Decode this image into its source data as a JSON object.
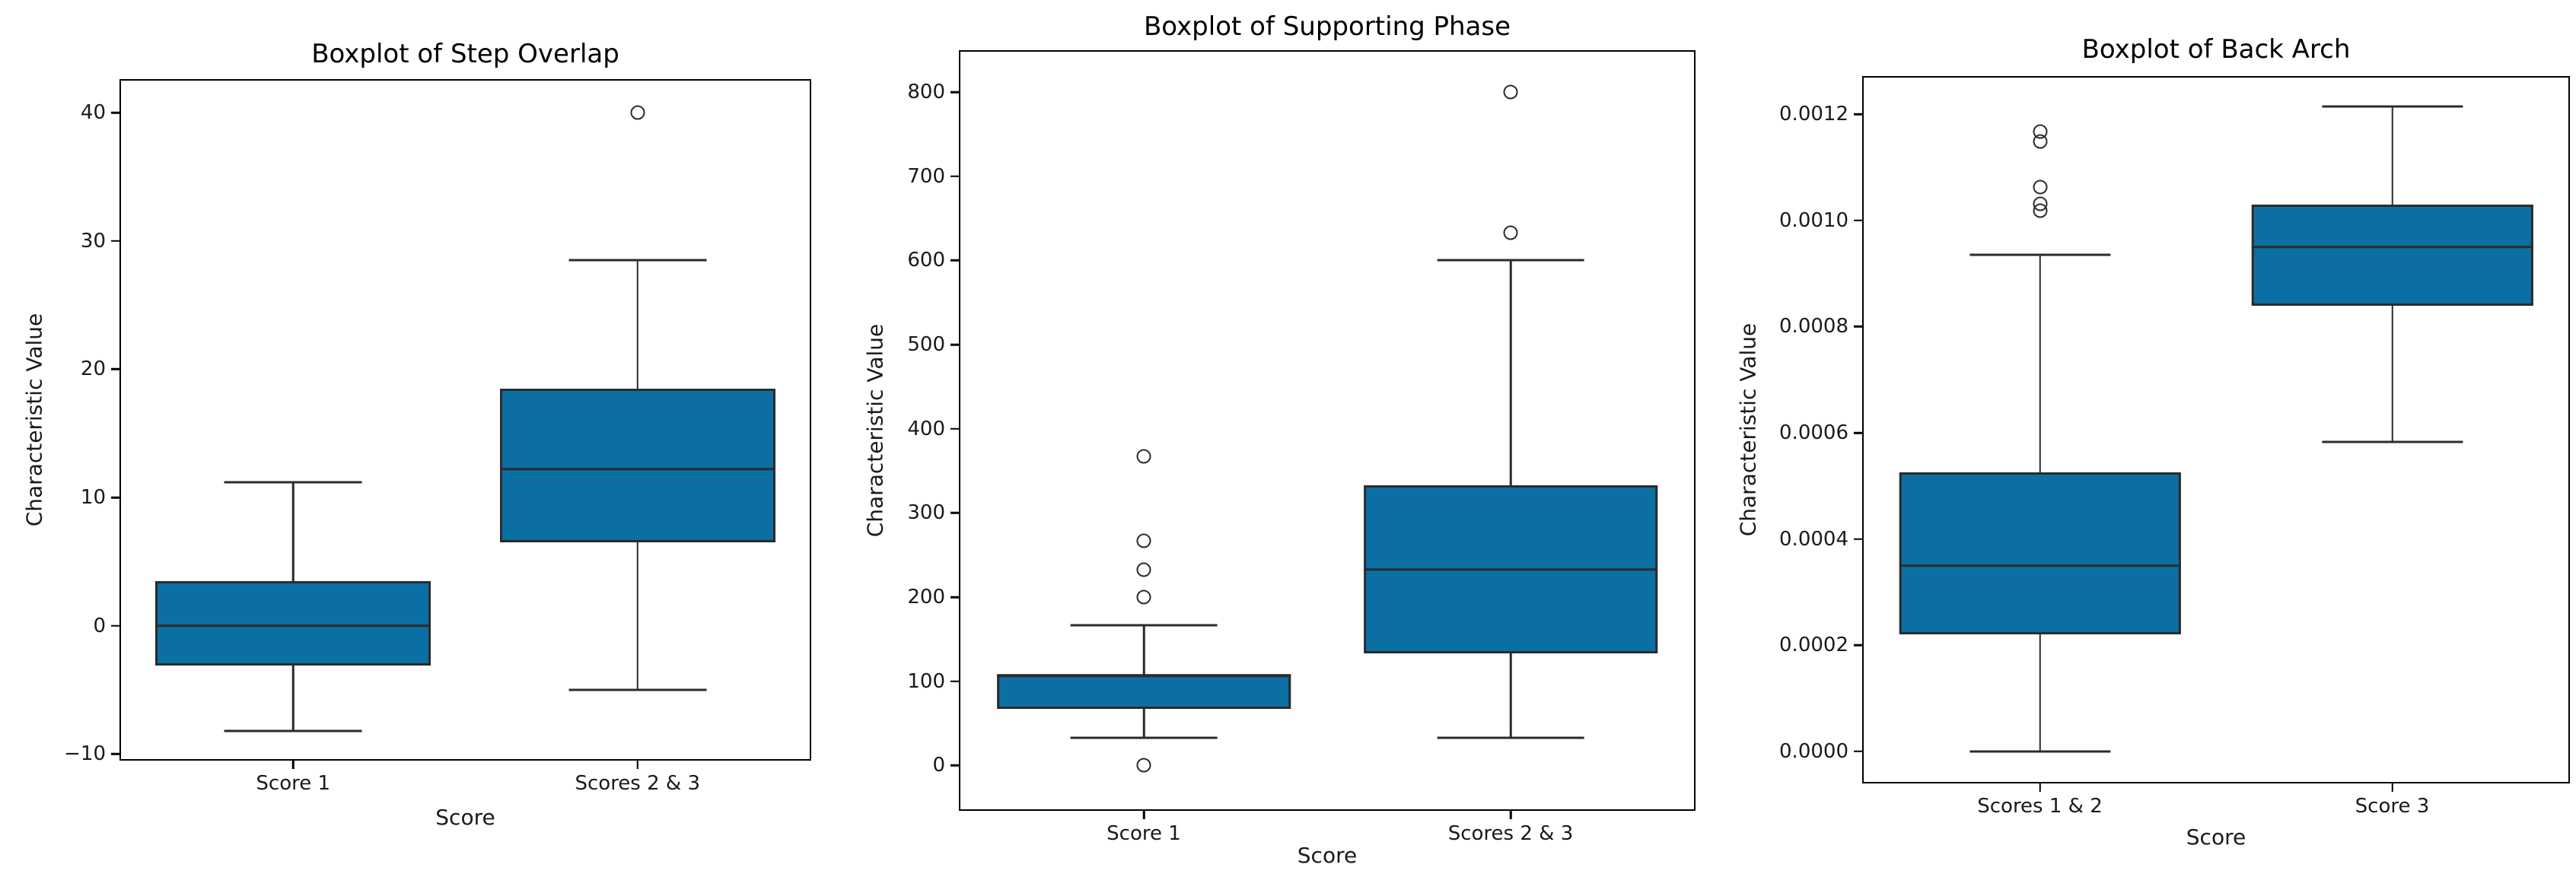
{
  "style": {
    "box_fill": "#0b6fa4",
    "line_color": "#2b2b2b",
    "frame_color": "#000000",
    "text_color": "#1a1a1a",
    "background": "#ffffff"
  },
  "chart_data": [
    {
      "type": "box",
      "title": "Boxplot of Step Overlap",
      "xlabel": "Score",
      "ylabel": "Characteristic Value",
      "ylim": [
        -10.4,
        42.5
      ],
      "yticks": [
        -10,
        0,
        10,
        20,
        30,
        40
      ],
      "ytick_labels": [
        "−10",
        "0",
        "10",
        "20",
        "30",
        "40"
      ],
      "categories": [
        "Score 1",
        "Scores 2 & 3"
      ],
      "grid": false,
      "boxes": [
        {
          "category": "Score 1",
          "whislo": -8.2,
          "q1": -3.1,
          "med": 0.0,
          "q3": 3.5,
          "whishi": 11.2,
          "outliers": []
        },
        {
          "category": "Scores 2 & 3",
          "whislo": -5.0,
          "q1": 6.5,
          "med": 12.2,
          "q3": 18.5,
          "whishi": 28.5,
          "outliers": [
            40.0
          ]
        }
      ]
    },
    {
      "type": "box",
      "title": "Boxplot of Supporting Phase",
      "xlabel": "Score",
      "ylabel": "Characteristic Value",
      "ylim": [
        -52,
        848
      ],
      "yticks": [
        0,
        100,
        200,
        300,
        400,
        500,
        600,
        700,
        800
      ],
      "ytick_labels": [
        "0",
        "100",
        "200",
        "300",
        "400",
        "500",
        "600",
        "700",
        "800"
      ],
      "categories": [
        "Score 1",
        "Scores 2 & 3"
      ],
      "grid": false,
      "boxes": [
        {
          "category": "Score 1",
          "whislo": 33,
          "q1": 67,
          "med": 107,
          "q3": 108,
          "whishi": 167,
          "outliers": [
            0,
            200,
            233,
            267,
            367
          ]
        },
        {
          "category": "Scores 2 & 3",
          "whislo": 33,
          "q1": 133,
          "med": 233,
          "q3": 333,
          "whishi": 600,
          "outliers": [
            633,
            800
          ]
        }
      ]
    },
    {
      "type": "box",
      "title": "Boxplot of Back Arch",
      "xlabel": "Score",
      "ylabel": "Characteristic Value",
      "ylim": [
        -5.73e-05,
        0.001269
      ],
      "yticks": [
        0.0,
        0.0002,
        0.0004,
        0.0006,
        0.0008,
        0.001,
        0.0012
      ],
      "ytick_labels": [
        "0.0000",
        "0.0002",
        "0.0004",
        "0.0006",
        "0.0008",
        "0.0010",
        "0.0012"
      ],
      "categories": [
        "Scores 1 & 2",
        "Score 3"
      ],
      "grid": false,
      "boxes": [
        {
          "category": "Scores 1 & 2",
          "whislo": 0.0,
          "q1": 0.00022,
          "med": 0.00035,
          "q3": 0.000525,
          "whishi": 0.000935,
          "outliers": [
            0.001019,
            0.001031,
            0.001063,
            0.001148,
            0.001167
          ]
        },
        {
          "category": "Score 3",
          "whislo": 0.000583,
          "q1": 0.00084,
          "med": 0.00095,
          "q3": 0.00103,
          "whishi": 0.001215,
          "outliers": []
        }
      ]
    }
  ]
}
